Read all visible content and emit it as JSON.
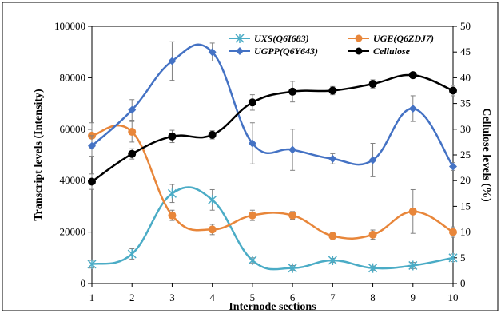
{
  "chart_data": {
    "type": "line",
    "xlabel": "Internode sections",
    "ylabel": "Transcript levels (Intensity)",
    "y2label": "Cellulose levels (%)",
    "x": [
      1,
      2,
      3,
      4,
      5,
      6,
      7,
      8,
      9,
      10
    ],
    "xticks": [
      "1",
      "2",
      "3",
      "4",
      "5",
      "6",
      "7",
      "8",
      "9",
      "10"
    ],
    "ylim": [
      0,
      100000
    ],
    "yticks": [
      "0",
      "20000",
      "40000",
      "60000",
      "80000",
      "100000"
    ],
    "y2lim": [
      0,
      50
    ],
    "y2ticks": [
      "0",
      "5",
      "10",
      "15",
      "20",
      "25",
      "30",
      "35",
      "40",
      "45",
      "50"
    ],
    "grid": false,
    "legend_placement": "top-center",
    "series": [
      {
        "name": "UXS(Q6I683)",
        "axis": "left",
        "color": "#4bacc6",
        "marker": "asterisk",
        "values": [
          7500,
          11500,
          35000,
          32500,
          9000,
          6000,
          9000,
          6000,
          7000,
          10000
        ],
        "errors": [
          1500,
          2000,
          3500,
          4000,
          1000,
          1000,
          800,
          800,
          1200,
          1500
        ]
      },
      {
        "name": "UGE(Q6ZDJ7)",
        "axis": "left",
        "color": "#e8863a",
        "marker": "circle",
        "values": [
          57500,
          59000,
          26500,
          21000,
          26500,
          26500,
          18500,
          19000,
          28000,
          20000
        ],
        "errors": [
          5000,
          4000,
          2000,
          2000,
          2000,
          1500,
          1200,
          1800,
          8500,
          2000
        ]
      },
      {
        "name": "UGPP(Q6Y643)",
        "axis": "left",
        "color": "#4472c4",
        "marker": "diamond",
        "values": [
          53500,
          67500,
          86500,
          90000,
          54500,
          52000,
          48500,
          48000,
          68000,
          45500
        ],
        "errors": [
          4000,
          4000,
          7500,
          3500,
          8000,
          8000,
          2000,
          6500,
          5000,
          1500
        ]
      },
      {
        "name": "Cellulose",
        "axis": "right",
        "color": "#000000",
        "marker": "circle",
        "values": [
          19.8,
          25.2,
          28.6,
          28.9,
          35.2,
          37.3,
          37.5,
          38.8,
          40.5,
          37.5
        ],
        "errors": [
          1.5,
          1.0,
          1.2,
          0.8,
          1.5,
          2.0,
          0.8,
          0.8,
          0.3,
          1.0
        ]
      }
    ]
  }
}
